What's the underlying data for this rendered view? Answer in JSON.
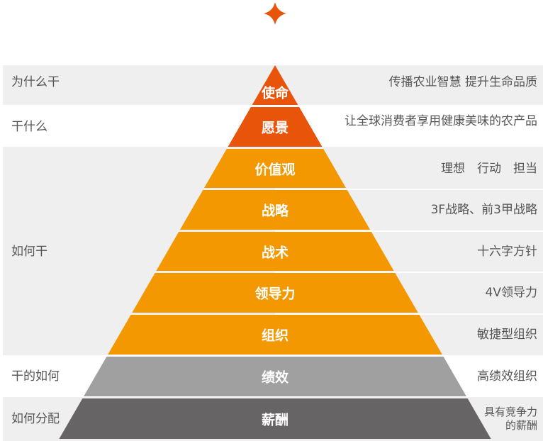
{
  "colors": {
    "red": "#E8540A",
    "orange": "#F39800",
    "gray": "#A0A0A0",
    "dark": "#666464",
    "band": "#EFEFEF",
    "text": "#555555"
  },
  "top_icon": "four-point-star-icon",
  "left_labels": [
    {
      "text": "为什么干",
      "rows": [
        0,
        0
      ]
    },
    {
      "text": "干什么",
      "rows": [
        1,
        1
      ]
    },
    {
      "text": "如何干",
      "rows": [
        2,
        6
      ]
    },
    {
      "text": "干的如何",
      "rows": [
        7,
        7
      ]
    },
    {
      "text": "如何分配",
      "rows": [
        8,
        8
      ]
    }
  ],
  "layers": [
    {
      "name": "使命",
      "color": "red",
      "desc": "传播农业智慧 提升生命品质"
    },
    {
      "name": "愿景",
      "color": "red",
      "desc": "让全球消费者享用健康美味的农产品"
    },
    {
      "name": "价值观",
      "color": "orange",
      "desc": "理想　行动　担当"
    },
    {
      "name": "战略",
      "color": "orange",
      "desc": "3F战略、前3甲战略"
    },
    {
      "name": "战术",
      "color": "orange",
      "desc": "十六字方针"
    },
    {
      "name": "领导力",
      "color": "orange",
      "desc": "4V领导力"
    },
    {
      "name": "组织",
      "color": "orange",
      "desc": "敏捷型组织"
    },
    {
      "name": "绩效",
      "color": "gray",
      "desc": "高绩效组织"
    },
    {
      "name": "薪酬",
      "color": "dark",
      "desc": "具有竞争力\n的薪酬"
    }
  ]
}
